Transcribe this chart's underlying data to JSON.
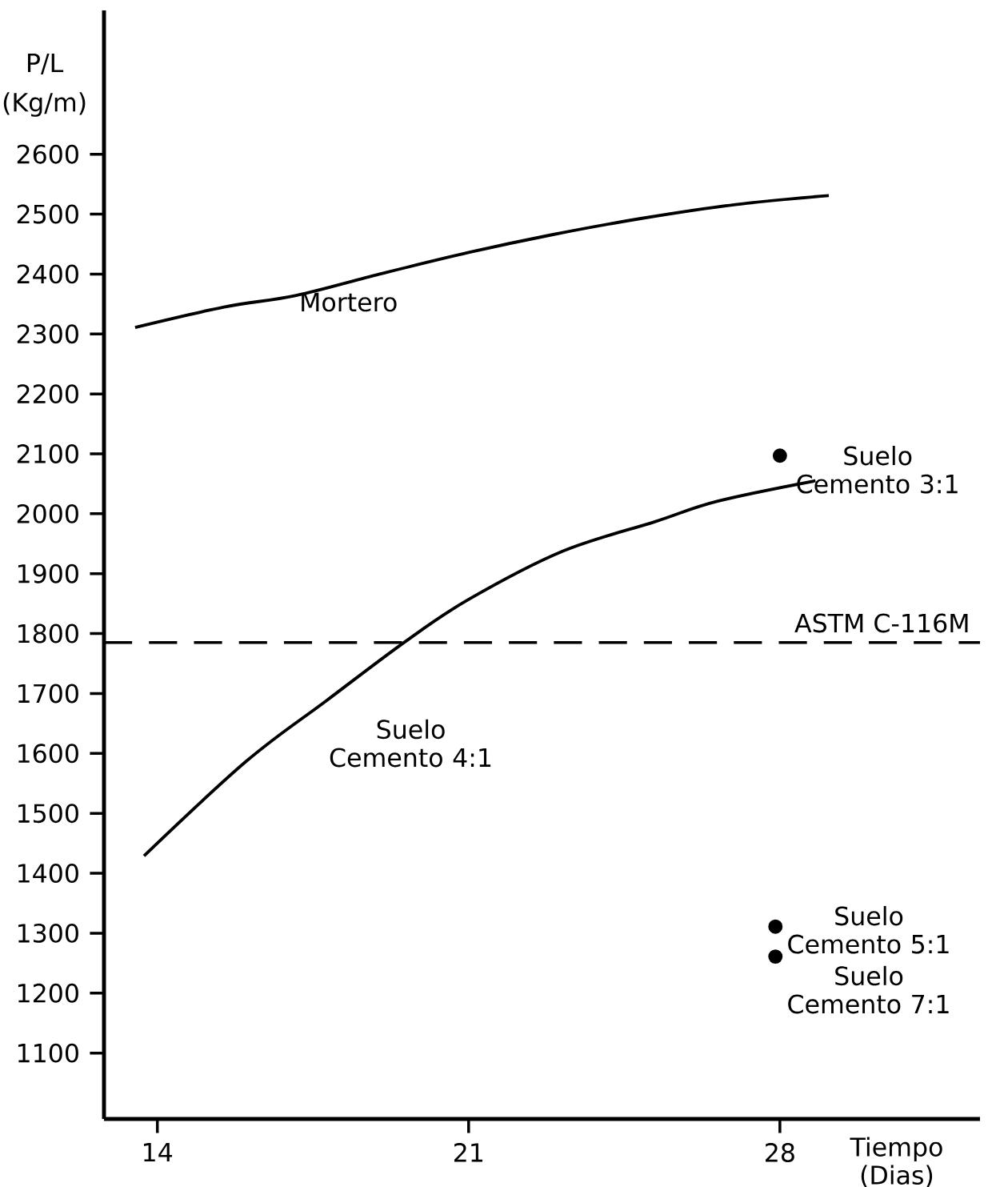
{
  "chart_data": {
    "type": "line",
    "xlabel": "Tiempo (Dias)",
    "ylabel": "P/L (Kg/m)",
    "xlim": [
      12.8,
      32.5
    ],
    "ylim": [
      990,
      2840
    ],
    "xticks": [
      14,
      21,
      28
    ],
    "yticks": [
      1100,
      1200,
      1300,
      1400,
      1500,
      1600,
      1700,
      1800,
      1900,
      2000,
      2100,
      2200,
      2300,
      2400,
      2500,
      2600
    ],
    "series": [
      {
        "name": "Mortero",
        "color": "#000000",
        "marker": "none",
        "line_style": "solid",
        "x": [
          13.5,
          15.5,
          17.1,
          19.0,
          21.0,
          22.9,
          24.9,
          27.0,
          29.1
        ],
        "values": [
          2311,
          2345,
          2364,
          2400,
          2436,
          2466,
          2493,
          2516,
          2531
        ]
      },
      {
        "name": "Suelo Cemento 4:1",
        "color": "#000000",
        "marker": "none",
        "line_style": "solid",
        "x": [
          13.7,
          16.0,
          17.8,
          19.6,
          21.0,
          23.1,
          25.2,
          26.6,
          28.8
        ],
        "values": [
          1429,
          1587,
          1688,
          1788,
          1857,
          1937,
          1987,
          2021,
          2055
        ]
      },
      {
        "name": "Suelo Cemento 3:1",
        "type": "scatter",
        "color": "#000000",
        "marker": "circle",
        "x": [
          28.0
        ],
        "values": [
          2097
        ]
      },
      {
        "name": "Suelo Cemento 5:1",
        "type": "scatter",
        "color": "#000000",
        "marker": "circle",
        "x": [
          27.9
        ],
        "values": [
          1311
        ]
      },
      {
        "name": "Suelo Cemento 7:1",
        "type": "scatter",
        "color": "#000000",
        "marker": "circle",
        "x": [
          27.9
        ],
        "values": [
          1261
        ]
      }
    ],
    "ref_lines": [
      {
        "axis": "y",
        "value": 1785,
        "label": "ASTM C-116M",
        "line_style": "dashed",
        "color": "#000000"
      }
    ]
  }
}
